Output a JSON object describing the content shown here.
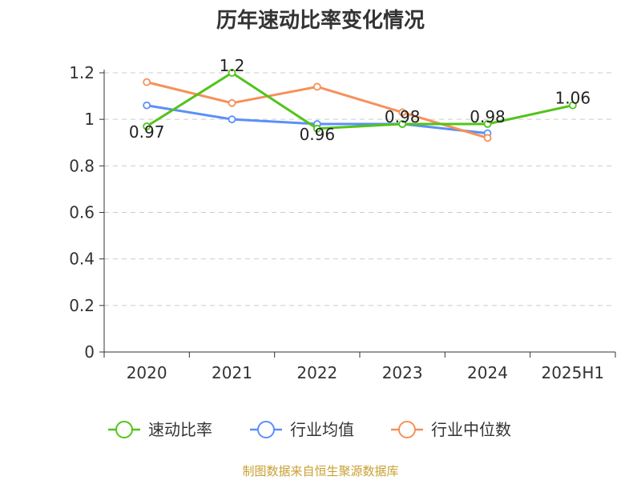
{
  "chart_data": {
    "type": "line",
    "title": "历年速动比率变化情况",
    "categories": [
      "2020",
      "2021",
      "2022",
      "2023",
      "2024",
      "2025H1"
    ],
    "ylim": [
      0,
      1.2
    ],
    "yticks": [
      "0",
      "0.2",
      "0.4",
      "0.6",
      "0.8",
      "1",
      "1.2"
    ],
    "grid": true,
    "legend_position": "bottom",
    "series": [
      {
        "name": "速动比率",
        "color": "#52c41a",
        "values": [
          0.97,
          1.2,
          0.96,
          0.98,
          0.98,
          1.06
        ],
        "labels": [
          "0.97",
          "1.2",
          "0.96",
          "0.98",
          "0.98",
          "1.06"
        ]
      },
      {
        "name": "行业均值",
        "color": "#5b8ff9",
        "values": [
          1.06,
          1.0,
          0.98,
          0.98,
          0.94,
          null
        ]
      },
      {
        "name": "行业中位数",
        "color": "#f6905a",
        "values": [
          1.16,
          1.07,
          1.14,
          1.03,
          0.92,
          null
        ]
      }
    ],
    "source": "制图数据来自恒生聚源数据库"
  }
}
